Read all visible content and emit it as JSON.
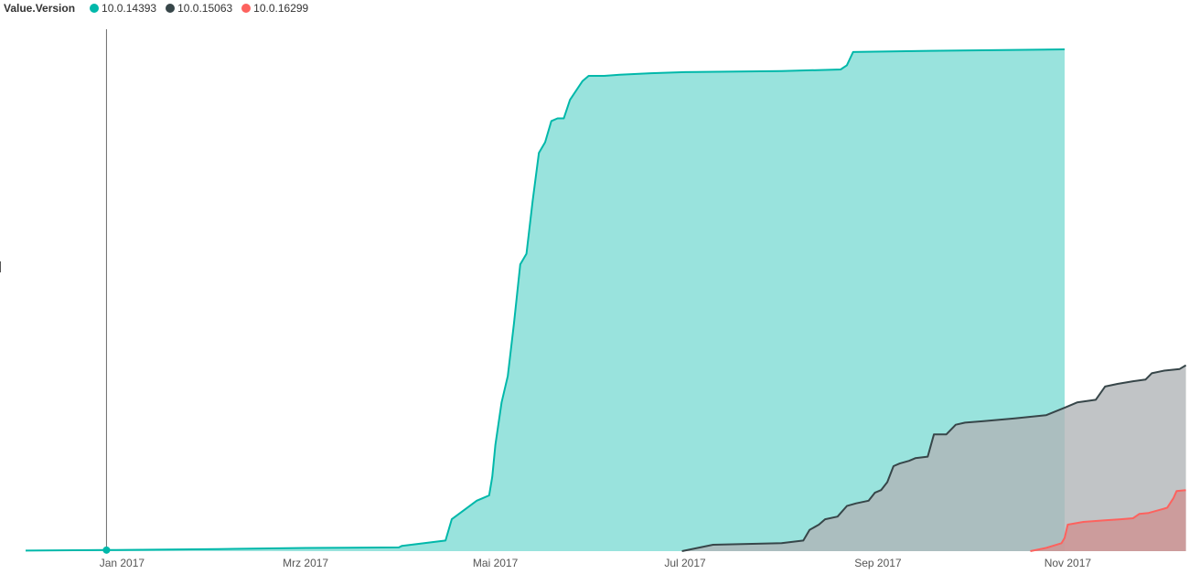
{
  "legend": {
    "title": "Value.Version"
  },
  "colors": {
    "axis": "#555555",
    "crosshair": "#6b6b6b"
  },
  "chart_data": {
    "type": "area",
    "title": "",
    "xlabel": "",
    "ylabel": "",
    "legend_position": "top-left",
    "grid": false,
    "x_ticks": [
      "Jan 2017",
      "Mrz 2017",
      "Mai 2017",
      "Jul 2017",
      "Sep 2017",
      "Nov 2017"
    ],
    "xlim": [
      "2016-12-01",
      "2017-12-10"
    ],
    "ylim": [
      0,
      100
    ],
    "series": [
      {
        "name": "10.0.14393",
        "color": "#01B8AA",
        "fill": "#99E3DD",
        "points": [
          [
            "2016-12-01",
            0.1
          ],
          [
            "2016-12-27",
            0.2
          ],
          [
            "2017-02-01",
            0.4
          ],
          [
            "2017-03-01",
            0.6
          ],
          [
            "2017-03-31",
            0.7
          ],
          [
            "2017-04-01",
            1.0
          ],
          [
            "2017-04-15",
            2.0
          ],
          [
            "2017-04-17",
            6.0
          ],
          [
            "2017-04-25",
            9.5
          ],
          [
            "2017-04-27",
            10.0
          ],
          [
            "2017-04-29",
            10.5
          ],
          [
            "2017-04-30",
            14.0
          ],
          [
            "2017-05-01",
            20.0
          ],
          [
            "2017-05-03",
            28.0
          ],
          [
            "2017-05-05",
            33.0
          ],
          [
            "2017-05-07",
            43.0
          ],
          [
            "2017-05-09",
            54.0
          ],
          [
            "2017-05-11",
            56.0
          ],
          [
            "2017-05-13",
            66.0
          ],
          [
            "2017-05-15",
            75.0
          ],
          [
            "2017-05-17",
            77.0
          ],
          [
            "2017-05-19",
            81.0
          ],
          [
            "2017-05-21",
            81.5
          ],
          [
            "2017-05-23",
            81.5
          ],
          [
            "2017-05-25",
            85.0
          ],
          [
            "2017-05-29",
            88.5
          ],
          [
            "2017-05-31",
            89.5
          ],
          [
            "2017-06-05",
            89.5
          ],
          [
            "2017-06-10",
            89.7
          ],
          [
            "2017-06-20",
            90.0
          ],
          [
            "2017-07-01",
            90.2
          ],
          [
            "2017-08-01",
            90.4
          ],
          [
            "2017-08-20",
            90.7
          ],
          [
            "2017-08-22",
            91.5
          ],
          [
            "2017-08-24",
            94.0
          ],
          [
            "2017-09-15",
            94.2
          ],
          [
            "2017-10-31",
            94.5
          ]
        ]
      },
      {
        "name": "10.0.15063",
        "color": "#374649",
        "fill": "#AFB4B6",
        "points": [
          [
            "2017-06-30",
            0.0
          ],
          [
            "2017-07-05",
            0.6
          ],
          [
            "2017-07-10",
            1.2
          ],
          [
            "2017-08-01",
            1.5
          ],
          [
            "2017-08-08",
            2.0
          ],
          [
            "2017-08-10",
            4.0
          ],
          [
            "2017-08-13",
            5.0
          ],
          [
            "2017-08-15",
            6.0
          ],
          [
            "2017-08-19",
            6.5
          ],
          [
            "2017-08-22",
            8.5
          ],
          [
            "2017-08-25",
            9.0
          ],
          [
            "2017-08-29",
            9.5
          ],
          [
            "2017-08-31",
            11.0
          ],
          [
            "2017-09-02",
            11.5
          ],
          [
            "2017-09-04",
            13.0
          ],
          [
            "2017-09-06",
            16.0
          ],
          [
            "2017-09-08",
            16.5
          ],
          [
            "2017-09-11",
            17.0
          ],
          [
            "2017-09-13",
            17.5
          ],
          [
            "2017-09-17",
            17.8
          ],
          [
            "2017-09-19",
            22.0
          ],
          [
            "2017-09-23",
            22.0
          ],
          [
            "2017-09-26",
            23.8
          ],
          [
            "2017-09-29",
            24.2
          ],
          [
            "2017-10-05",
            24.5
          ],
          [
            "2017-10-15",
            25.0
          ],
          [
            "2017-10-25",
            25.6
          ],
          [
            "2017-10-31",
            27.0
          ],
          [
            "2017-11-04",
            28.0
          ],
          [
            "2017-11-10",
            28.5
          ],
          [
            "2017-11-13",
            31.0
          ],
          [
            "2017-11-17",
            31.5
          ],
          [
            "2017-11-22",
            32.0
          ],
          [
            "2017-11-26",
            32.3
          ],
          [
            "2017-11-28",
            33.5
          ],
          [
            "2017-12-02",
            34.0
          ],
          [
            "2017-12-07",
            34.3
          ],
          [
            "2017-12-09",
            35.0
          ]
        ]
      },
      {
        "name": "10.0.16299",
        "color": "#FD625E",
        "fill": "#D0918F",
        "points": [
          [
            "2017-10-20",
            0.0
          ],
          [
            "2017-10-25",
            0.6
          ],
          [
            "2017-10-30",
            1.5
          ],
          [
            "2017-10-31",
            2.5
          ],
          [
            "2017-11-01",
            5.0
          ],
          [
            "2017-11-06",
            5.5
          ],
          [
            "2017-11-13",
            5.8
          ],
          [
            "2017-11-18",
            6.0
          ],
          [
            "2017-11-22",
            6.2
          ],
          [
            "2017-11-24",
            7.0
          ],
          [
            "2017-11-27",
            7.2
          ],
          [
            "2017-12-02",
            8.0
          ],
          [
            "2017-12-03",
            8.2
          ],
          [
            "2017-12-05",
            10.0
          ],
          [
            "2017-12-06",
            11.3
          ],
          [
            "2017-12-09",
            11.5
          ]
        ]
      }
    ],
    "hover_date": "2016-12-27"
  }
}
